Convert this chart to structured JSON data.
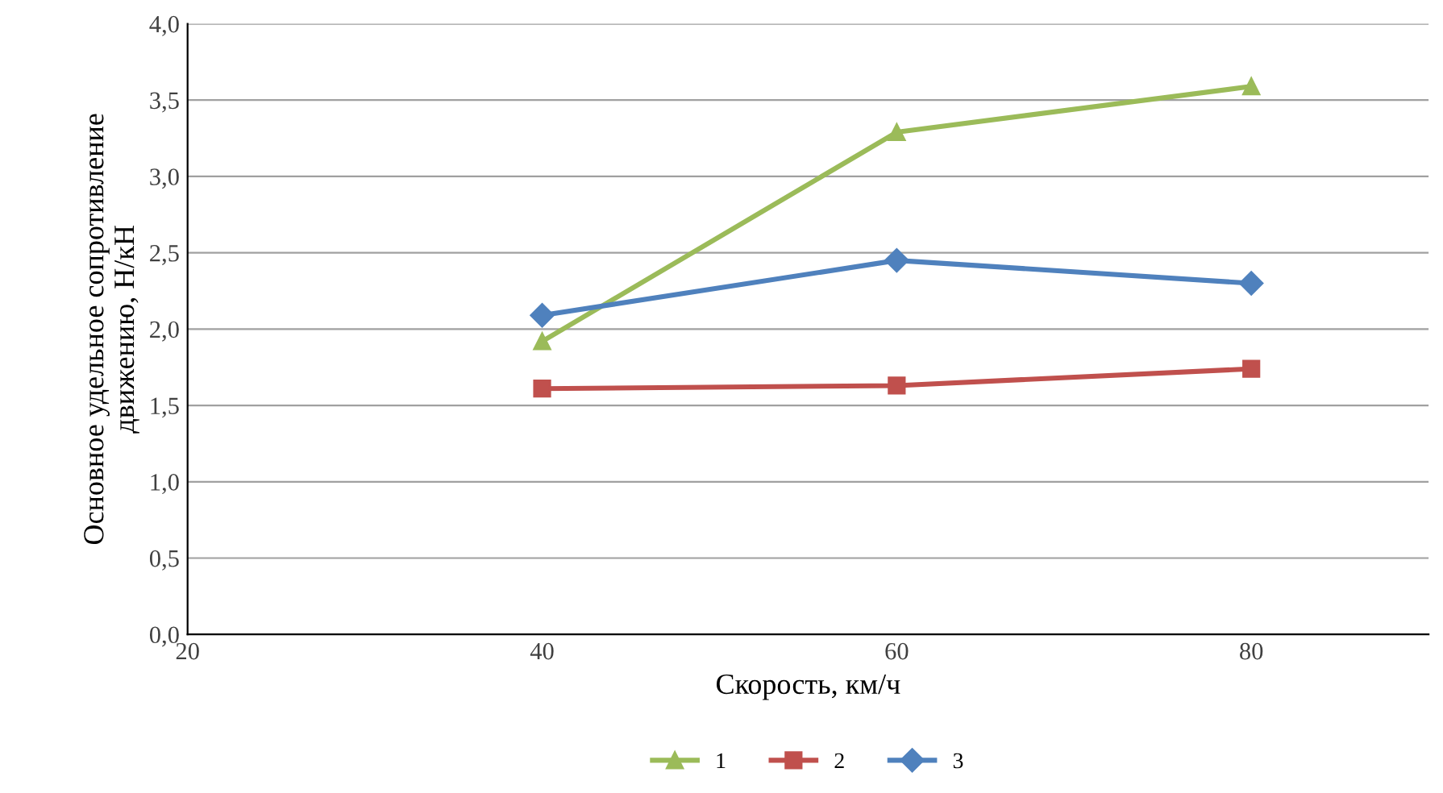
{
  "chart_data": {
    "type": "line",
    "xlabel": "Скорость, км/ч",
    "ylabel": "Основное удельное сопротивление\nдвижению, Н/кН",
    "x": [
      40,
      60,
      80
    ],
    "series": [
      {
        "name": "1",
        "color": "#9bbb59",
        "marker": "triangle",
        "values": [
          1.92,
          3.29,
          3.59
        ]
      },
      {
        "name": "2",
        "color": "#c0504d",
        "marker": "square",
        "values": [
          1.61,
          1.63,
          1.74
        ]
      },
      {
        "name": "3",
        "color": "#4f81bd",
        "marker": "diamond",
        "values": [
          2.09,
          2.45,
          2.3
        ]
      }
    ],
    "xlim": [
      20,
      90
    ],
    "xticks": [
      20,
      40,
      60,
      80
    ],
    "ylim": [
      0,
      4
    ],
    "yticks": [
      {
        "value": 0,
        "label": "0,0"
      },
      {
        "value": 0.5,
        "label": "0,5"
      },
      {
        "value": 1,
        "label": "1,0"
      },
      {
        "value": 1.5,
        "label": "1,5"
      },
      {
        "value": 2,
        "label": "2,0"
      },
      {
        "value": 2.5,
        "label": "2,5"
      },
      {
        "value": 3,
        "label": "3,0"
      },
      {
        "value": 3.5,
        "label": "3,5"
      },
      {
        "value": 4,
        "label": "4,0"
      }
    ],
    "grid": "y",
    "legend": "bottom",
    "line_style": "solid"
  }
}
